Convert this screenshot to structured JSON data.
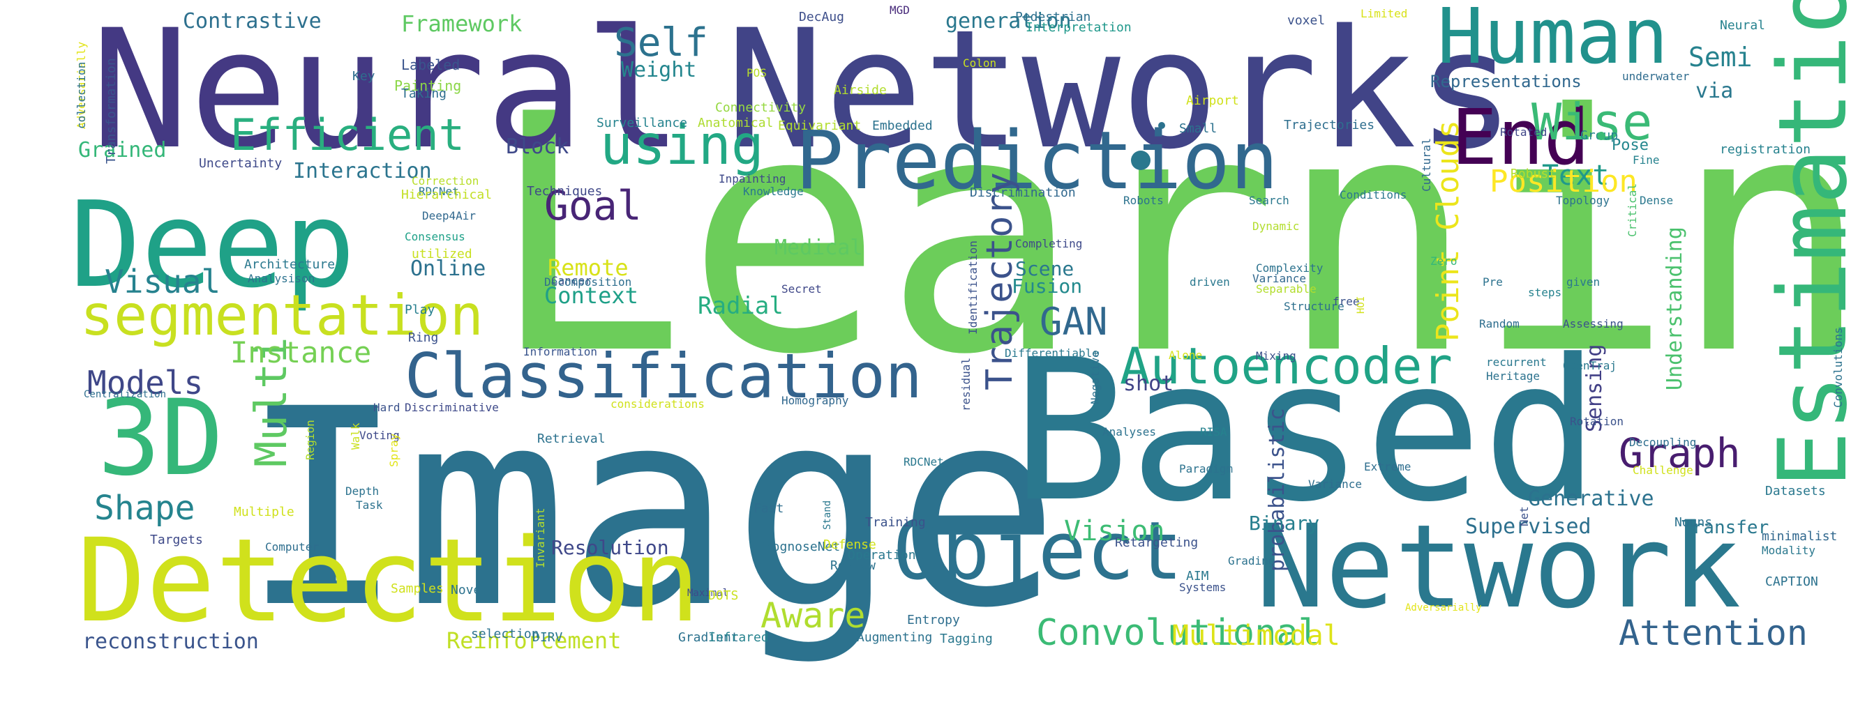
{
  "word_cloud": {
    "words": [
      {
        "text": "Learning",
        "color": "#6ccd5a"
      },
      {
        "text": "Image",
        "color": "#2c728e"
      },
      {
        "text": "Based",
        "color": "#2a788e"
      },
      {
        "text": "Neural",
        "color": "#443983"
      },
      {
        "text": "Networks",
        "color": "#414487"
      },
      {
        "text": "Network",
        "color": "#2a788e"
      },
      {
        "text": "Detection",
        "color": "#d0e11c"
      },
      {
        "text": "Deep",
        "color": "#1fa187"
      },
      {
        "text": "Prediction",
        "color": "#31688e"
      },
      {
        "text": "Estimation",
        "color": "#35b779"
      },
      {
        "text": "Human",
        "color": "#21918c"
      },
      {
        "text": "Object",
        "color": "#2c728e"
      },
      {
        "text": "Classification",
        "color": "#33638d"
      },
      {
        "text": "3D",
        "color": "#35b779"
      },
      {
        "text": "End",
        "color": "#440154"
      },
      {
        "text": "segmentation",
        "color": "#c8e020"
      },
      {
        "text": "Autoencoder",
        "color": "#20a386"
      },
      {
        "text": "using",
        "color": "#22a884"
      },
      {
        "text": "Wise",
        "color": "#3aba76"
      },
      {
        "text": "Self",
        "color": "#2c728e"
      },
      {
        "text": "Goal",
        "color": "#482576"
      },
      {
        "text": "GAN",
        "color": "#31688e"
      },
      {
        "text": "Trajectory",
        "color": "#3b528b"
      },
      {
        "text": "Point Clouds",
        "color": "#ece51b"
      },
      {
        "text": "Multi",
        "color": "#5ec962"
      },
      {
        "text": "Graph",
        "color": "#481d6f"
      },
      {
        "text": "Convolutional",
        "color": "#3bbb75"
      },
      {
        "text": "Attention",
        "color": "#33638d"
      },
      {
        "text": "Aware",
        "color": "#b0dd2f"
      },
      {
        "text": "Efficient",
        "color": "#29af7f"
      },
      {
        "text": "Models",
        "color": "#3f4788"
      },
      {
        "text": "Shape",
        "color": "#25848e"
      },
      {
        "text": "Visual",
        "color": "#26828e"
      },
      {
        "text": "Instance",
        "color": "#75d054"
      },
      {
        "text": "Text",
        "color": "#1f9a8a"
      },
      {
        "text": "Position",
        "color": "#fde725"
      },
      {
        "text": "Vision",
        "color": "#3dbc74"
      },
      {
        "text": "Multimodal",
        "color": "#dde318"
      },
      {
        "text": "Supervised",
        "color": "#2d708e"
      },
      {
        "text": "Understanding",
        "color": "#4ac16d"
      },
      {
        "text": "Semi",
        "color": "#26828e"
      },
      {
        "text": "Reinforcement",
        "color": "#c0df25"
      },
      {
        "text": "reconstruction",
        "color": "#3a548c"
      },
      {
        "text": "Contrastive",
        "color": "#2d708e"
      },
      {
        "text": "Framework",
        "color": "#5ec962"
      },
      {
        "text": "generation",
        "color": "#2a788e"
      },
      {
        "text": "Weight",
        "color": "#24868e"
      },
      {
        "text": "Interaction",
        "color": "#2b748e"
      },
      {
        "text": "Block",
        "color": "#3e4989"
      },
      {
        "text": "Grained",
        "color": "#35b779"
      },
      {
        "text": "Medical",
        "color": "#5ec962"
      },
      {
        "text": "Remote",
        "color": "#d8e219"
      },
      {
        "text": "Context",
        "color": "#1fa088"
      },
      {
        "text": "Radial",
        "color": "#26ad81"
      },
      {
        "text": "Online",
        "color": "#2c718e"
      },
      {
        "text": "Scene",
        "color": "#2a788e"
      },
      {
        "text": "Fusion",
        "color": "#238a8d"
      },
      {
        "text": "shot",
        "color": "#414487"
      },
      {
        "text": "Generative",
        "color": "#2c728e"
      },
      {
        "text": "Sensing",
        "color": "#424086"
      },
      {
        "text": "probabilistic",
        "color": "#3b528b"
      },
      {
        "text": "Binary",
        "color": "#277f8e"
      },
      {
        "text": "Transfer",
        "color": "#2a788e"
      },
      {
        "text": "Resolution",
        "color": "#3f4889"
      },
      {
        "text": "Representations",
        "color": "#31688e"
      },
      {
        "text": "via",
        "color": "#2a788e"
      },
      {
        "text": "Pose",
        "color": "#24878e"
      },
      {
        "text": "Painting",
        "color": "#8bd646"
      },
      {
        "text": "Labeled",
        "color": "#3a548c"
      },
      {
        "text": "Taking",
        "color": "#2e6e8e"
      },
      {
        "text": "Key",
        "color": "#2e6e8e"
      },
      {
        "text": "Connectivity",
        "color": "#95d840"
      },
      {
        "text": "Surveillance",
        "color": "#25838e"
      },
      {
        "text": "Anatomical",
        "color": "#addc30"
      },
      {
        "text": "Embedded",
        "color": "#2c728e"
      },
      {
        "text": "Small",
        "color": "#2c718e"
      },
      {
        "text": "Trajectories",
        "color": "#2e6e8e"
      },
      {
        "text": "Rotated",
        "color": "#404688"
      },
      {
        "text": "Group",
        "color": "#25838e"
      },
      {
        "text": "registration",
        "color": "#26828e"
      },
      {
        "text": "Fine",
        "color": "#26828e"
      },
      {
        "text": "Cultural",
        "color": "#31688e"
      },
      {
        "text": "Robust",
        "color": "#b5de2b"
      },
      {
        "text": "DecAug",
        "color": "#3d4e8a"
      },
      {
        "text": "MGD",
        "color": "#472a7a"
      },
      {
        "text": "Pedestrian",
        "color": "#2d708e"
      },
      {
        "text": "Interpretation",
        "color": "#1f988b"
      },
      {
        "text": "voxel",
        "color": "#3b528b"
      },
      {
        "text": "Limited",
        "color": "#d8e219"
      },
      {
        "text": "Neural",
        "color": "#26828e"
      },
      {
        "text": "underwater",
        "color": "#2f6c8e"
      },
      {
        "text": "Colon",
        "color": "#cae11f"
      },
      {
        "text": "POS",
        "color": "#b8de29"
      },
      {
        "text": "Airside",
        "color": "#b2dd2d"
      },
      {
        "text": "Airport",
        "color": "#d0e11c"
      },
      {
        "text": "Transformation",
        "color": "#3a548c"
      },
      {
        "text": "Adversarially",
        "color": "#e2e418"
      },
      {
        "text": "Uncertainty",
        "color": "#3e4989"
      },
      {
        "text": "Correction",
        "color": "#b8de29"
      },
      {
        "text": "RDCNet",
        "color": "#2a788e"
      },
      {
        "text": "Hierarchical",
        "color": "#c2df23"
      },
      {
        "text": "Techniques",
        "color": "#3f4788"
      },
      {
        "text": "Knowledge",
        "color": "#2a788e"
      },
      {
        "text": "Discrimination",
        "color": "#31688e"
      },
      {
        "text": "Conditions",
        "color": "#2a788e"
      },
      {
        "text": "Search",
        "color": "#2a788e"
      },
      {
        "text": "Robots",
        "color": "#2c728e"
      },
      {
        "text": "Topology",
        "color": "#2c728e"
      },
      {
        "text": "Dense",
        "color": "#2a788e"
      },
      {
        "text": "Critical",
        "color": "#4ac16d"
      },
      {
        "text": "Deep4Air",
        "color": "#31688e"
      },
      {
        "text": "Consensus",
        "color": "#1fa188"
      },
      {
        "text": "utilized",
        "color": "#c8e020"
      },
      {
        "text": "Cancer",
        "color": "#3b528b"
      },
      {
        "text": "Completing",
        "color": "#3e4989"
      },
      {
        "text": "Dynamic",
        "color": "#b2dd2d"
      },
      {
        "text": "Complexity",
        "color": "#2c728e"
      },
      {
        "text": "Variance",
        "color": "#31688e"
      },
      {
        "text": "driven",
        "color": "#2a788e"
      },
      {
        "text": "Identification",
        "color": "#3b528b"
      },
      {
        "text": "Architecture",
        "color": "#2a788e"
      },
      {
        "text": "Analysison",
        "color": "#2c728e"
      },
      {
        "text": "Secret",
        "color": "#3f4788"
      },
      {
        "text": "Decomposition",
        "color": "#2e6e8e"
      },
      {
        "text": "Separable",
        "color": "#b2dd2d"
      },
      {
        "text": "Structure",
        "color": "#2d708e"
      },
      {
        "text": "Zero",
        "color": "#35b779"
      },
      {
        "text": "Pre",
        "color": "#2c728e"
      },
      {
        "text": "steps",
        "color": "#26828e"
      },
      {
        "text": "given",
        "color": "#2a788e"
      },
      {
        "text": "free",
        "color": "#3b528b"
      },
      {
        "text": "HOI",
        "color": "#d2e21b"
      },
      {
        "text": "Random",
        "color": "#2e6e8e"
      },
      {
        "text": "Assessing",
        "color": "#3b528b"
      },
      {
        "text": "Play",
        "color": "#277f8e"
      },
      {
        "text": "Ring",
        "color": "#3b528b"
      },
      {
        "text": "Information",
        "color": "#39558c"
      },
      {
        "text": "Differentiable",
        "color": "#2a788e"
      },
      {
        "text": "Alone",
        "color": "#d8e219"
      },
      {
        "text": "Mixing",
        "color": "#3b528b"
      },
      {
        "text": "recurrent",
        "color": "#2a788e"
      },
      {
        "text": "Heritage",
        "color": "#2c728e"
      },
      {
        "text": "OpenTraj",
        "color": "#2a788e"
      },
      {
        "text": "Convolutions",
        "color": "#2c728e"
      },
      {
        "text": "Centralization",
        "color": "#2e6e8e"
      },
      {
        "text": "Hard",
        "color": "#3b528b"
      },
      {
        "text": "Discriminative",
        "color": "#3e4989"
      },
      {
        "text": "considerations",
        "color": "#d0e11c"
      },
      {
        "text": "Homography",
        "color": "#31688e"
      },
      {
        "text": "residual",
        "color": "#3b528b"
      },
      {
        "text": "Negative",
        "color": "#2c728e"
      },
      {
        "text": "Region",
        "color": "#b2dd2d"
      },
      {
        "text": "Voting",
        "color": "#3e4989"
      },
      {
        "text": "Analyses",
        "color": "#2c728e"
      },
      {
        "text": "RISA",
        "color": "#26828e"
      },
      {
        "text": "Rotation",
        "color": "#3b528b"
      },
      {
        "text": "Decoupling",
        "color": "#2e6e8e"
      },
      {
        "text": "Retrieval",
        "color": "#2c728e"
      },
      {
        "text": "Spray",
        "color": "#e2e418"
      },
      {
        "text": "Walk",
        "color": "#cae11f"
      },
      {
        "text": "Depth",
        "color": "#2c728e"
      },
      {
        "text": "Task",
        "color": "#2c728e"
      },
      {
        "text": "RDCNet",
        "color": "#2a788e"
      },
      {
        "text": "Extreme",
        "color": "#2e6e8e"
      },
      {
        "text": "Paradigm",
        "color": "#2c728e"
      },
      {
        "text": "Variance",
        "color": "#2e6e8e"
      },
      {
        "text": "Net",
        "color": "#3b528b"
      },
      {
        "text": "Challenge",
        "color": "#d0e11c"
      },
      {
        "text": "Datasets",
        "color": "#2a788e"
      },
      {
        "text": "Nouns",
        "color": "#2c728e"
      },
      {
        "text": "minimalist",
        "color": "#31688e"
      },
      {
        "text": "Modality",
        "color": "#2a788e"
      },
      {
        "text": "CAPTION",
        "color": "#2c728e"
      },
      {
        "text": "Fast",
        "color": "#2e6e8e"
      },
      {
        "text": "Stand",
        "color": "#2a788e"
      },
      {
        "text": "Training",
        "color": "#3b528b"
      },
      {
        "text": "Multiple",
        "color": "#d0e11c"
      },
      {
        "text": "Targets",
        "color": "#3e4989"
      },
      {
        "text": "Computer",
        "color": "#2e6e8e"
      },
      {
        "text": "Invariant",
        "color": "#b2dd2d"
      },
      {
        "text": "PrognoseNet",
        "color": "#2c728e"
      },
      {
        "text": "Defense",
        "color": "#d0e11c"
      },
      {
        "text": "Operation",
        "color": "#2a788e"
      },
      {
        "text": "Review",
        "color": "#2c728e"
      },
      {
        "text": "Retargeting",
        "color": "#3b528b"
      },
      {
        "text": "Grading",
        "color": "#2c728e"
      },
      {
        "text": "AIM",
        "color": "#2a788e"
      },
      {
        "text": "Systems",
        "color": "#3b528b"
      },
      {
        "text": "Samples",
        "color": "#d0e11c"
      },
      {
        "text": "Novel",
        "color": "#2c728e"
      },
      {
        "text": "Maximal",
        "color": "#3e4989"
      },
      {
        "text": "DOTS",
        "color": "#cae11f"
      },
      {
        "text": "Entropy",
        "color": "#2e6e8e"
      },
      {
        "text": "selection",
        "color": "#2c728e"
      },
      {
        "text": "DIRV",
        "color": "#2a788e"
      },
      {
        "text": "Gradient",
        "color": "#2c728e"
      },
      {
        "text": "Infrared",
        "color": "#26828e"
      },
      {
        "text": "Augmenting",
        "color": "#2c728e"
      },
      {
        "text": "Tagging",
        "color": "#2a788e"
      },
      {
        "text": "Equivariant",
        "color": "#b2dd2d"
      },
      {
        "text": "Inpainting",
        "color": "#3e4989"
      },
      {
        "text": "collection",
        "color": "#2c728e"
      },
      {
        "text": "Adversarially",
        "color": "#e2e418"
      }
    ]
  }
}
